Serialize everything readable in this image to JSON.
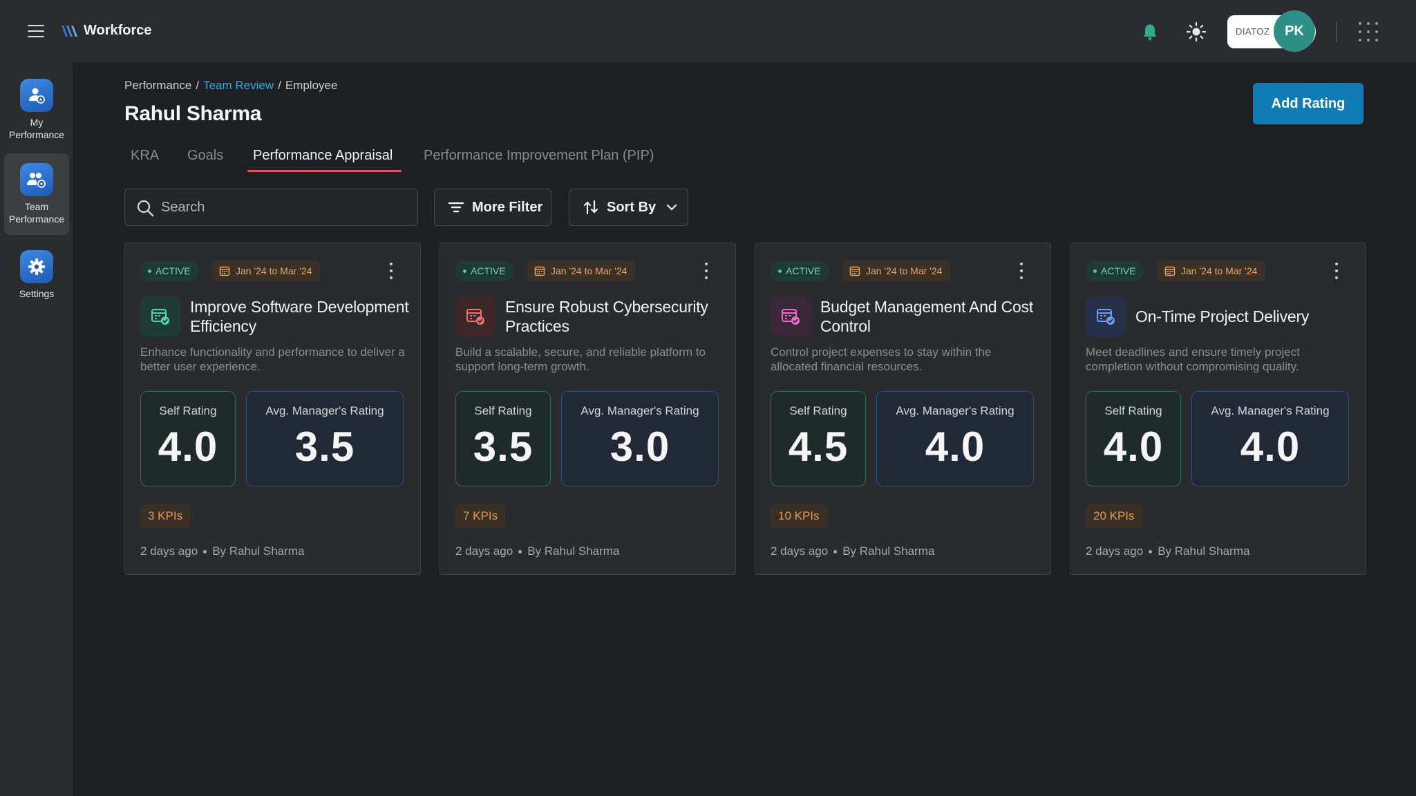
{
  "app": {
    "name": "Workforce",
    "org_label": "DIATOZ",
    "user_initials": "PK"
  },
  "sidebar": {
    "items": [
      {
        "label_line1": "My",
        "label_line2": "Performance",
        "active": false
      },
      {
        "label_line1": "Team",
        "label_line2": "Performance",
        "active": true
      },
      {
        "label_line1": "Settings",
        "label_line2": "",
        "active": false
      }
    ]
  },
  "breadcrumb": {
    "first": "Performance",
    "second": "Team Review",
    "third": "Employee",
    "sep": "/"
  },
  "page": {
    "title": "Rahul Sharma",
    "add_rating_label": "Add Rating"
  },
  "tabs": [
    {
      "label": "KRA"
    },
    {
      "label": "Goals"
    },
    {
      "label": "Performance Appraisal",
      "active": true
    },
    {
      "label": "Performance Improvement Plan (PIP)"
    }
  ],
  "toolbar": {
    "search_placeholder": "Search",
    "filter_label": "More Filter",
    "sort_label": "Sort By"
  },
  "cards": [
    {
      "status": "ACTIVE",
      "period": "Jan '24  to  Mar '24",
      "title": "Improve Software Development Efficiency",
      "description": "Enhance functionality and performance to deliver a better user experience.",
      "self_label": "Self Rating",
      "self_rating": "4.0",
      "mgr_label": "Avg. Manager's Rating",
      "mgr_rating": "3.5",
      "kpis": "3 KPIs",
      "time": "2 days ago",
      "author": "By Rahul Sharma",
      "icon_color": "#4fd1b0",
      "icon_bg": "#1f3b35"
    },
    {
      "status": "ACTIVE",
      "period": "Jan '24  to  Mar '24",
      "title": "Ensure Robust Cybersecurity Practices",
      "description": "Build a scalable, secure, and reliable platform to support long-term growth.",
      "self_label": "Self Rating",
      "self_rating": "3.5",
      "mgr_label": "Avg. Manager's Rating",
      "mgr_rating": "3.0",
      "kpis": "7 KPIs",
      "time": "2 days ago",
      "author": "By Rahul Sharma",
      "icon_color": "#f07070",
      "icon_bg": "#3d2729"
    },
    {
      "status": "ACTIVE",
      "period": "Jan '24  to  Mar '24",
      "title": "Budget Management And Cost Control",
      "description": "Control project expenses to stay within the allocated financial resources.",
      "self_label": "Self Rating",
      "self_rating": "4.5",
      "mgr_label": "Avg. Manager's Rating",
      "mgr_rating": "4.0",
      "kpis": "10 KPIs",
      "time": "2 days ago",
      "author": "By Rahul Sharma",
      "icon_color": "#e86fd4",
      "icon_bg": "#3a2737"
    },
    {
      "status": "ACTIVE",
      "period": "Jan '24  to  Mar '24",
      "title": "On-Time Project Delivery",
      "description": "Meet deadlines and ensure timely project completion without compromising quality.",
      "self_label": "Self Rating",
      "self_rating": "4.0",
      "mgr_label": "Avg. Manager's Rating",
      "mgr_rating": "4.0",
      "kpis": "20 KPIs",
      "time": "2 days ago",
      "author": "By Rahul Sharma",
      "icon_color": "#6f9df0",
      "icon_bg": "#27304a"
    }
  ]
}
